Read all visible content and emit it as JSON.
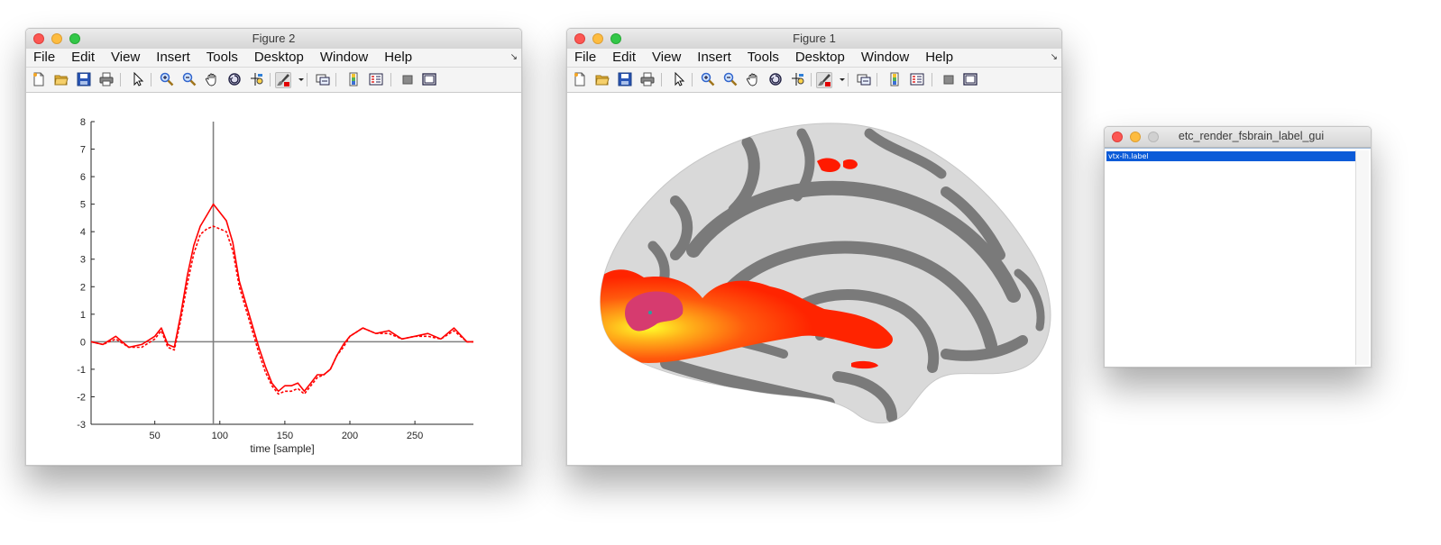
{
  "figure2": {
    "title": "Figure 2",
    "menu": [
      "File",
      "Edit",
      "View",
      "Insert",
      "Tools",
      "Desktop",
      "Window",
      "Help"
    ],
    "plot": {
      "xlabel": "time [sample]",
      "xticks": [
        "50",
        "100",
        "150",
        "200",
        "250"
      ],
      "yticks": [
        "8",
        "7",
        "6",
        "5",
        "4",
        "3",
        "2",
        "1",
        "0",
        "-1",
        "-2",
        "-3"
      ]
    }
  },
  "figure1": {
    "title": "Figure 1",
    "menu": [
      "File",
      "Edit",
      "View",
      "Insert",
      "Tools",
      "Desktop",
      "Window",
      "Help"
    ]
  },
  "label_gui": {
    "title": "etc_render_fsbrain_label_gui",
    "selected_item": "vtx-lh.label"
  },
  "toolbar_icons": [
    "new-file-icon",
    "open-folder-icon",
    "save-icon",
    "print-icon",
    "pointer-icon",
    "zoom-in-icon",
    "zoom-out-icon",
    "pan-hand-icon",
    "rotate-3d-icon",
    "data-cursor-icon",
    "brush-icon",
    "brush-dropdown-icon",
    "link-plot-icon",
    "colorbar-icon",
    "legend-icon",
    "hide-plot-tools-icon",
    "show-plot-tools-icon"
  ],
  "colors": {
    "trace": "#ff0000",
    "label_selection": "#0b5bd8",
    "brain_gyri": "#d9d9d9",
    "brain_sulci": "#7a7a7a"
  },
  "chart_data": {
    "type": "line",
    "xlabel": "time [sample]",
    "ylabel": "",
    "xlim": [
      1,
      295
    ],
    "ylim": [
      -3,
      8
    ],
    "xticks": [
      50,
      100,
      150,
      200,
      250
    ],
    "yticks": [
      -3,
      -2,
      -1,
      0,
      1,
      2,
      3,
      4,
      5,
      6,
      7,
      8
    ],
    "cursor_x": 95,
    "zero_line": 0,
    "series": [
      {
        "style": "solid",
        "x": [
          1,
          10,
          20,
          30,
          40,
          50,
          55,
          60,
          65,
          70,
          75,
          80,
          85,
          90,
          95,
          100,
          105,
          110,
          115,
          120,
          125,
          130,
          135,
          140,
          145,
          150,
          155,
          160,
          165,
          170,
          175,
          180,
          185,
          190,
          195,
          200,
          210,
          220,
          230,
          240,
          250,
          260,
          270,
          280,
          290,
          295
        ],
        "y": [
          0.0,
          -0.1,
          0.2,
          -0.2,
          -0.1,
          0.2,
          0.5,
          -0.1,
          -0.2,
          1.0,
          2.4,
          3.5,
          4.2,
          4.6,
          5.0,
          4.7,
          4.4,
          3.6,
          2.2,
          1.4,
          0.6,
          -0.2,
          -0.9,
          -1.5,
          -1.8,
          -1.6,
          -1.6,
          -1.5,
          -1.8,
          -1.5,
          -1.2,
          -1.2,
          -1.0,
          -0.5,
          -0.1,
          0.2,
          0.5,
          0.3,
          0.4,
          0.1,
          0.2,
          0.3,
          0.1,
          0.5,
          0.0,
          0.0
        ]
      },
      {
        "style": "dashed",
        "x": [
          1,
          10,
          20,
          30,
          40,
          50,
          55,
          60,
          65,
          70,
          75,
          80,
          85,
          90,
          95,
          100,
          105,
          110,
          115,
          120,
          125,
          130,
          135,
          140,
          145,
          150,
          155,
          160,
          165,
          170,
          175,
          180,
          185,
          190,
          195,
          200,
          210,
          220,
          230,
          240,
          250,
          260,
          270,
          280,
          290,
          295
        ],
        "y": [
          0.0,
          -0.1,
          0.1,
          -0.2,
          -0.2,
          0.1,
          0.4,
          -0.2,
          -0.3,
          0.8,
          2.1,
          3.2,
          3.9,
          4.1,
          4.2,
          4.1,
          4.0,
          3.3,
          2.0,
          1.2,
          0.4,
          -0.4,
          -1.1,
          -1.6,
          -1.9,
          -1.8,
          -1.8,
          -1.7,
          -1.9,
          -1.6,
          -1.3,
          -1.2,
          -1.0,
          -0.5,
          -0.2,
          0.2,
          0.5,
          0.3,
          0.3,
          0.1,
          0.2,
          0.2,
          0.1,
          0.4,
          0.0,
          0.0
        ]
      }
    ]
  }
}
